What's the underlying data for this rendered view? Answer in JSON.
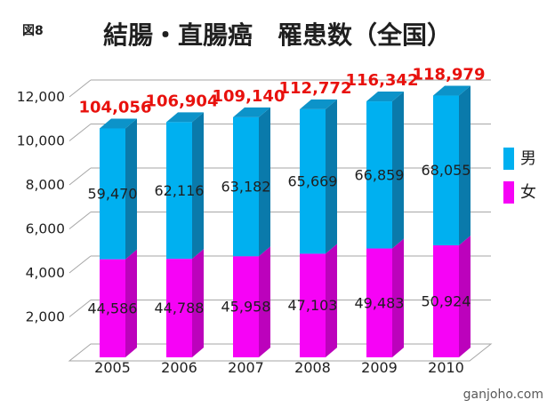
{
  "figure_label": "図8",
  "watermark": "ganjoho.com",
  "legend": [
    {
      "label": "男",
      "color": "#00b0f0"
    },
    {
      "label": "女",
      "color": "#f603f6"
    }
  ],
  "colors": {
    "male_front": "#00b0f0",
    "male_side": "#0a7aab",
    "male_top": "#0c93c9",
    "female_front": "#f603f6",
    "female_side": "#bc02bc",
    "grid": "#a6a6a6",
    "text": "#1f1f1f",
    "total_label": "#e8110d"
  },
  "chart_data": {
    "type": "bar",
    "stacked": true,
    "three_d": true,
    "title": "結腸・直腸癌　罹患数（全国）",
    "categories": [
      "2005",
      "2006",
      "2007",
      "2008",
      "2009",
      "2010"
    ],
    "series": [
      {
        "name": "女",
        "values": [
          44586,
          44788,
          45958,
          47103,
          49483,
          50924
        ]
      },
      {
        "name": "男",
        "values": [
          59470,
          62116,
          63182,
          65669,
          66859,
          68055
        ]
      }
    ],
    "totals": [
      104056,
      106904,
      109140,
      112772,
      116342,
      118979
    ],
    "y_ticks": [
      "2,000",
      "4,000",
      "6,000",
      "8,000",
      "10,000",
      "12,000"
    ],
    "ylim": [
      0,
      12000
    ],
    "grid": true,
    "legend_position": "right"
  }
}
